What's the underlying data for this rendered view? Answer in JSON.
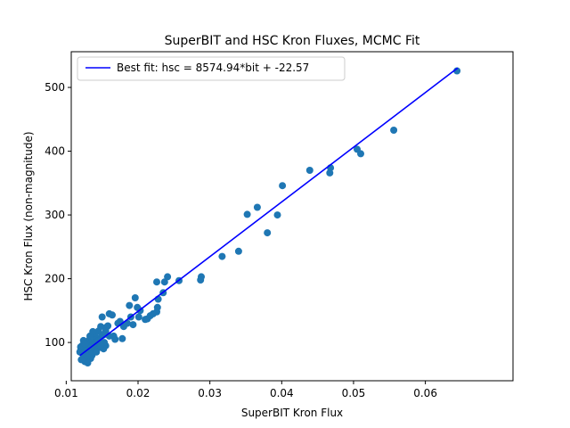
{
  "chart_data": {
    "type": "scatter",
    "title": "SuperBIT and HSC Kron Fluxes, MCMC Fit",
    "xlabel": "SuperBIT Kron Flux",
    "ylabel": "HSC Kron Flux (non-magnitude)",
    "xlim": [
      0.0107,
      0.0722
    ],
    "ylim": [
      40,
      556
    ],
    "x_ticks": [
      0.01,
      0.02,
      0.03,
      0.04,
      0.05,
      0.06
    ],
    "x_tick_labels": [
      "0.01",
      "0.02",
      "0.03",
      "0.04",
      "0.05",
      "0.06"
    ],
    "y_ticks": [
      100,
      200,
      300,
      400,
      500
    ],
    "y_tick_labels": [
      "100",
      "200",
      "300",
      "400",
      "500"
    ],
    "grid": false,
    "legend": {
      "placement": "top-left",
      "entries": [
        "Best fit: hsc = 8574.94*bit + -22.57"
      ]
    },
    "colors": {
      "points": "#1f77b4",
      "fit_line": "#0000ff"
    },
    "fit": {
      "slope": 8574.94,
      "intercept": -22.57,
      "x_range": [
        0.0119,
        0.0645
      ]
    },
    "series": [
      {
        "type": "scatter",
        "points": [
          [
            0.0644,
            526
          ],
          [
            0.0556,
            433
          ],
          [
            0.0505,
            403
          ],
          [
            0.051,
            396
          ],
          [
            0.0468,
            374
          ],
          [
            0.0467,
            366
          ],
          [
            0.0439,
            370
          ],
          [
            0.0401,
            346
          ],
          [
            0.0394,
            300
          ],
          [
            0.038,
            272
          ],
          [
            0.0366,
            312
          ],
          [
            0.0352,
            301
          ],
          [
            0.034,
            243
          ],
          [
            0.0317,
            235
          ],
          [
            0.0288,
            203
          ],
          [
            0.0287,
            198
          ],
          [
            0.0257,
            197
          ],
          [
            0.0241,
            203
          ],
          [
            0.0237,
            195
          ],
          [
            0.0235,
            178
          ],
          [
            0.0226,
            195
          ],
          [
            0.0228,
            168
          ],
          [
            0.0227,
            155
          ],
          [
            0.0226,
            148
          ],
          [
            0.0221,
            145
          ],
          [
            0.0217,
            142
          ],
          [
            0.0213,
            137
          ],
          [
            0.021,
            136
          ],
          [
            0.0203,
            150
          ],
          [
            0.0199,
            155
          ],
          [
            0.0201,
            140
          ],
          [
            0.0196,
            170
          ],
          [
            0.0193,
            128
          ],
          [
            0.019,
            140
          ],
          [
            0.0188,
            158
          ],
          [
            0.0185,
            130
          ],
          [
            0.018,
            125
          ],
          [
            0.0178,
            106
          ],
          [
            0.0175,
            133
          ],
          [
            0.0172,
            130
          ],
          [
            0.0168,
            105
          ],
          [
            0.0166,
            110
          ],
          [
            0.0164,
            143
          ],
          [
            0.016,
            145
          ],
          [
            0.016,
            110
          ],
          [
            0.0158,
            126
          ],
          [
            0.0156,
            124
          ],
          [
            0.0155,
            118
          ],
          [
            0.0155,
            95
          ],
          [
            0.0153,
            100
          ],
          [
            0.0152,
            90
          ],
          [
            0.015,
            140
          ],
          [
            0.0149,
            110
          ],
          [
            0.0148,
            125
          ],
          [
            0.0147,
            100
          ],
          [
            0.0146,
            92
          ],
          [
            0.0145,
            118
          ],
          [
            0.0143,
            105
          ],
          [
            0.0142,
            96
          ],
          [
            0.0141,
            108
          ],
          [
            0.014,
            115
          ],
          [
            0.0139,
            100
          ],
          [
            0.0138,
            88
          ],
          [
            0.0137,
            95
          ],
          [
            0.0136,
            80
          ],
          [
            0.0135,
            100
          ],
          [
            0.0134,
            75
          ],
          [
            0.0133,
            90
          ],
          [
            0.0132,
            104
          ],
          [
            0.0131,
            85
          ],
          [
            0.013,
            95
          ],
          [
            0.0129,
            78
          ],
          [
            0.0128,
            100
          ],
          [
            0.0127,
            88
          ],
          [
            0.0126,
            70
          ],
          [
            0.0125,
            92
          ],
          [
            0.0124,
            103
          ],
          [
            0.0123,
            82
          ],
          [
            0.0122,
            95
          ],
          [
            0.0121,
            73
          ],
          [
            0.012,
            88
          ],
          [
            0.012,
            93
          ],
          [
            0.0119,
            85
          ],
          [
            0.0133,
            110
          ],
          [
            0.0137,
            117
          ],
          [
            0.0145,
            103
          ],
          [
            0.0152,
            112
          ],
          [
            0.0142,
            85
          ],
          [
            0.013,
            68
          ],
          [
            0.0126,
            98
          ],
          [
            0.0135,
            92
          ],
          [
            0.0148,
            96
          ]
        ]
      }
    ]
  }
}
